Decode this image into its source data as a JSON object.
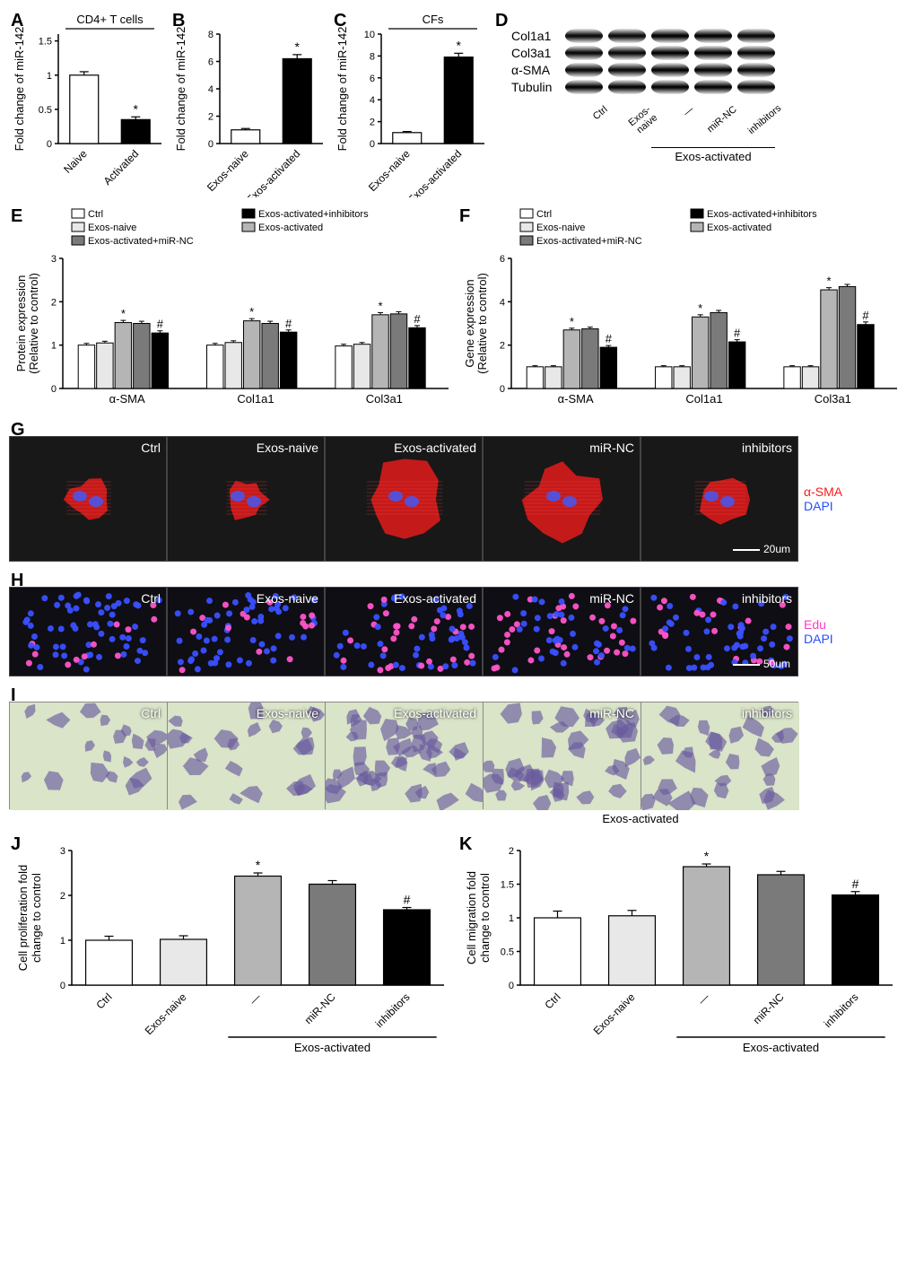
{
  "panelA": {
    "label": "A",
    "type": "bar",
    "ylabel": "Fold change of miR-142",
    "title": "CD4+ T cells",
    "categories": [
      "Naive",
      "Activated"
    ],
    "values": [
      1.0,
      0.35
    ],
    "errors": [
      0.05,
      0.04
    ],
    "bar_colors": [
      "#ffffff",
      "#000000"
    ],
    "ylim": [
      0,
      1.6
    ],
    "yticks": [
      0,
      0.5,
      1.0,
      1.5
    ],
    "sig": [
      "",
      "*"
    ]
  },
  "panelB": {
    "label": "B",
    "type": "bar",
    "ylabel": "Fold change of miR-142",
    "categories": [
      "Exos-naive",
      "Exos-activated"
    ],
    "values": [
      1.0,
      6.2
    ],
    "errors": [
      0.1,
      0.3
    ],
    "bar_colors": [
      "#ffffff",
      "#000000"
    ],
    "ylim": [
      0,
      8
    ],
    "yticks": [
      0,
      2,
      4,
      6,
      8
    ],
    "sig": [
      "",
      "*"
    ]
  },
  "panelC": {
    "label": "C",
    "type": "bar",
    "ylabel": "Fold change of miR-142",
    "title": "CFs",
    "categories": [
      "Exos-naive",
      "Exos-activated"
    ],
    "values": [
      1.0,
      7.9
    ],
    "errors": [
      0.1,
      0.35
    ],
    "bar_colors": [
      "#ffffff",
      "#000000"
    ],
    "ylim": [
      0,
      10
    ],
    "yticks": [
      0,
      2,
      4,
      6,
      8,
      10
    ],
    "sig": [
      "",
      "*"
    ]
  },
  "panelD": {
    "label": "D",
    "proteins": [
      "Col1a1",
      "Col3a1",
      "α-SMA",
      "Tubulin"
    ],
    "lanes": [
      "Ctrl",
      "Exos-naive",
      "—",
      "miR-NC",
      "inhibitors"
    ],
    "group_label": "Exos-activated",
    "intensities": {
      "Col1a1": [
        0.6,
        0.6,
        0.95,
        0.95,
        0.75
      ],
      "Col3a1": [
        0.7,
        0.7,
        0.95,
        0.95,
        0.8
      ],
      "α-SMA": [
        0.65,
        0.65,
        0.9,
        0.9,
        0.75
      ],
      "Tubulin": [
        0.9,
        0.9,
        0.9,
        0.9,
        0.9
      ]
    }
  },
  "groups5": {
    "names": [
      "Ctrl",
      "Exos-naive",
      "Exos-activated",
      "Exos-activated+miR-NC",
      "Exos-activated+inhibitors"
    ],
    "colors": [
      "#ffffff",
      "#e8e8e8",
      "#b5b5b5",
      "#7a7a7a",
      "#000000"
    ]
  },
  "panelE": {
    "label": "E",
    "type": "grouped-bar",
    "ylabel": "Protein expression\n(Relative to control)",
    "categories": [
      "α-SMA",
      "Col1a1",
      "Col3a1"
    ],
    "values": [
      [
        1.0,
        1.05,
        1.52,
        1.5,
        1.28
      ],
      [
        1.0,
        1.06,
        1.56,
        1.5,
        1.3
      ],
      [
        0.98,
        1.02,
        1.7,
        1.72,
        1.4
      ]
    ],
    "errors": [
      [
        0.04,
        0.04,
        0.05,
        0.05,
        0.05
      ],
      [
        0.04,
        0.04,
        0.05,
        0.05,
        0.05
      ],
      [
        0.04,
        0.04,
        0.05,
        0.05,
        0.05
      ]
    ],
    "ylim": [
      0,
      3
    ],
    "yticks": [
      0,
      1,
      2,
      3
    ],
    "sig_marks": [
      [
        2,
        "*"
      ],
      [
        4,
        "#"
      ],
      [
        7,
        "*"
      ],
      [
        9,
        "#"
      ],
      [
        12,
        "*"
      ],
      [
        14,
        "#"
      ]
    ]
  },
  "panelF": {
    "label": "F",
    "type": "grouped-bar",
    "ylabel": "Gene expression\n(Relative to control)",
    "categories": [
      "α-SMA",
      "Col1a1",
      "Col3a1"
    ],
    "values": [
      [
        1.0,
        1.0,
        2.7,
        2.75,
        1.9
      ],
      [
        1.0,
        1.0,
        3.3,
        3.5,
        2.15
      ],
      [
        1.0,
        1.0,
        4.55,
        4.7,
        2.95
      ]
    ],
    "errors": [
      [
        0.05,
        0.05,
        0.08,
        0.08,
        0.08
      ],
      [
        0.05,
        0.05,
        0.1,
        0.1,
        0.1
      ],
      [
        0.05,
        0.05,
        0.1,
        0.1,
        0.12
      ]
    ],
    "ylim": [
      0,
      6
    ],
    "yticks": [
      0,
      2,
      4,
      6
    ],
    "sig_marks": [
      [
        2,
        "*"
      ],
      [
        4,
        "#"
      ],
      [
        7,
        "*"
      ],
      [
        9,
        "#"
      ],
      [
        12,
        "*"
      ],
      [
        14,
        "#"
      ]
    ]
  },
  "panelG": {
    "label": "G",
    "cells": [
      "Ctrl",
      "Exos-naive",
      "Exos-activated",
      "miR-NC",
      "inhibitors"
    ],
    "side": [
      {
        "text": "α-SMA",
        "color": "#ff1a1a"
      },
      {
        "text": "DAPI",
        "color": "#2850ff"
      }
    ],
    "scale": "20um",
    "bg": "#181818",
    "cell_color": "#d81b1b",
    "nucleus_color": "#4a55e8"
  },
  "panelH": {
    "label": "H",
    "cells": [
      "Ctrl",
      "Exos-naive",
      "Exos-activated",
      "miR-NC",
      "inhibitors"
    ],
    "side": [
      {
        "text": "Edu",
        "color": "#ff3cc0"
      },
      {
        "text": "DAPI",
        "color": "#2850ff"
      }
    ],
    "scale": "50um",
    "bg": "#0e0e14",
    "edu_color": "#ff55c8",
    "dapi_color": "#3a50ff"
  },
  "panelI": {
    "label": "I",
    "cells": [
      "Ctrl",
      "Exos-naive",
      "Exos-activated",
      "miR-NC",
      "inhibitors"
    ],
    "group_label": "Exos-activated",
    "bg": "#d9e4c8",
    "cell_color": "#6a5b9e"
  },
  "panelJ": {
    "label": "J",
    "type": "bar",
    "ylabel": "Cell proliferation fold\nchange to control",
    "categories": [
      "Ctrl",
      "Exos-naive",
      "—",
      "miR-NC",
      "inhibitors"
    ],
    "group_label": "Exos-activated",
    "values": [
      1.0,
      1.02,
      2.43,
      2.25,
      1.68
    ],
    "errors": [
      0.09,
      0.08,
      0.07,
      0.08,
      0.05
    ],
    "bar_colors": [
      "#ffffff",
      "#e8e8e8",
      "#b5b5b5",
      "#7a7a7a",
      "#000000"
    ],
    "ylim": [
      0,
      3
    ],
    "yticks": [
      0,
      1,
      2,
      3
    ],
    "sig": [
      "",
      "",
      "*",
      "",
      "#"
    ]
  },
  "panelK": {
    "label": "K",
    "type": "bar",
    "ylabel": "Cell migration fold\nchange to control",
    "categories": [
      "Ctrl",
      "Exos-naive",
      "—",
      "miR-NC",
      "inhibitors"
    ],
    "group_label": "Exos-activated",
    "values": [
      1.0,
      1.03,
      1.76,
      1.64,
      1.34
    ],
    "errors": [
      0.1,
      0.08,
      0.04,
      0.05,
      0.05
    ],
    "bar_colors": [
      "#ffffff",
      "#e8e8e8",
      "#b5b5b5",
      "#7a7a7a",
      "#000000"
    ],
    "ylim": [
      0,
      2.0
    ],
    "yticks": [
      0,
      0.5,
      1.0,
      1.5,
      2.0
    ],
    "sig": [
      "",
      "",
      "*",
      "",
      "#"
    ]
  }
}
